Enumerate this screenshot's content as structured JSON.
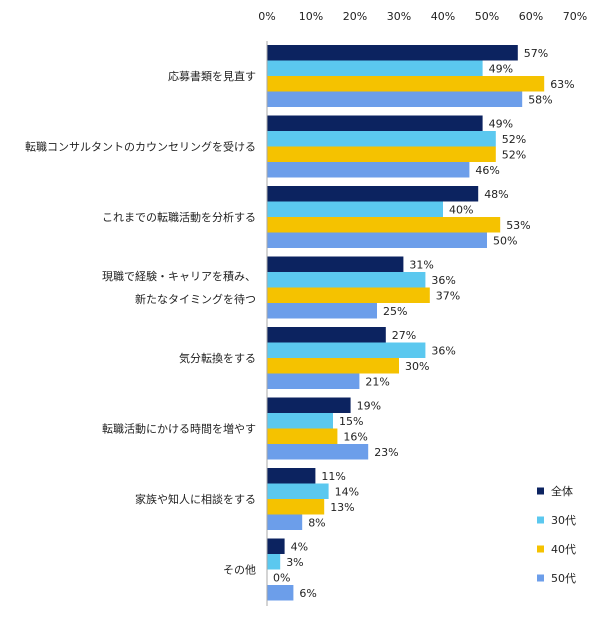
{
  "chart_data": {
    "type": "bar",
    "orientation": "horizontal",
    "xlim": [
      0,
      70
    ],
    "ticks": [
      0,
      10,
      20,
      30,
      40,
      50,
      60,
      70
    ],
    "tick_labels": [
      "0%",
      "10%",
      "20%",
      "30%",
      "40%",
      "50%",
      "60%",
      "70%"
    ],
    "value_suffix": "%",
    "gridlines": false,
    "legend_position": "right",
    "categories": [
      [
        "応募書類を見直す"
      ],
      [
        "転職コンサルタントのカウンセリングを受ける"
      ],
      [
        "これまでの転職活動を分析する"
      ],
      [
        "現職で経験・キャリアを積み、",
        "新たなタイミングを待つ"
      ],
      [
        "気分転換をする"
      ],
      [
        "転職活動にかける時間を増やす"
      ],
      [
        "家族や知人に相談をする"
      ],
      [
        "その他"
      ]
    ],
    "series": [
      {
        "name": "全体",
        "color": "#0c2360",
        "values": [
          57,
          49,
          48,
          31,
          27,
          19,
          11,
          4
        ]
      },
      {
        "name": "30代",
        "color": "#5bc8ef",
        "values": [
          49,
          52,
          40,
          36,
          36,
          15,
          14,
          3
        ]
      },
      {
        "name": "40代",
        "color": "#f5c200",
        "values": [
          63,
          52,
          53,
          37,
          30,
          16,
          13,
          0
        ]
      },
      {
        "name": "50代",
        "color": "#6c9eea",
        "values": [
          58,
          46,
          50,
          25,
          21,
          23,
          8,
          6
        ]
      }
    ]
  }
}
